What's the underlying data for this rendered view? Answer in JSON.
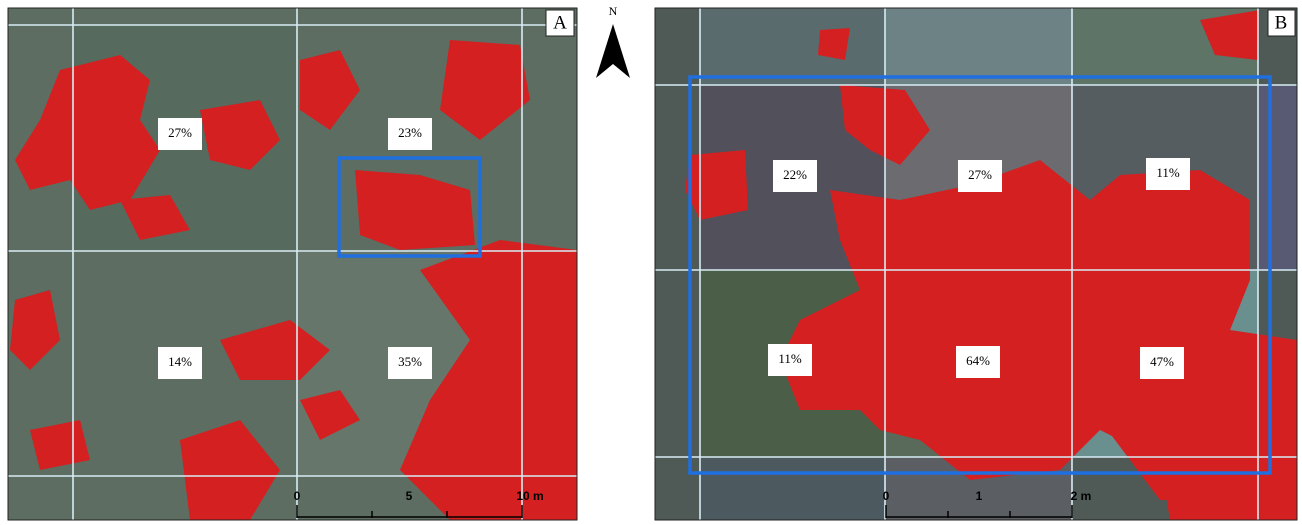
{
  "north": "N",
  "panels": [
    {
      "label": "A",
      "cells": [
        "27%",
        "23%",
        "14%",
        "35%"
      ],
      "scale": [
        "0",
        "5",
        "10 m"
      ]
    },
    {
      "label": "B",
      "cells": [
        "22%",
        "27%",
        "11%",
        "11%",
        "64%",
        "47%"
      ],
      "scale": [
        "0",
        "1",
        "2 m"
      ]
    }
  ]
}
